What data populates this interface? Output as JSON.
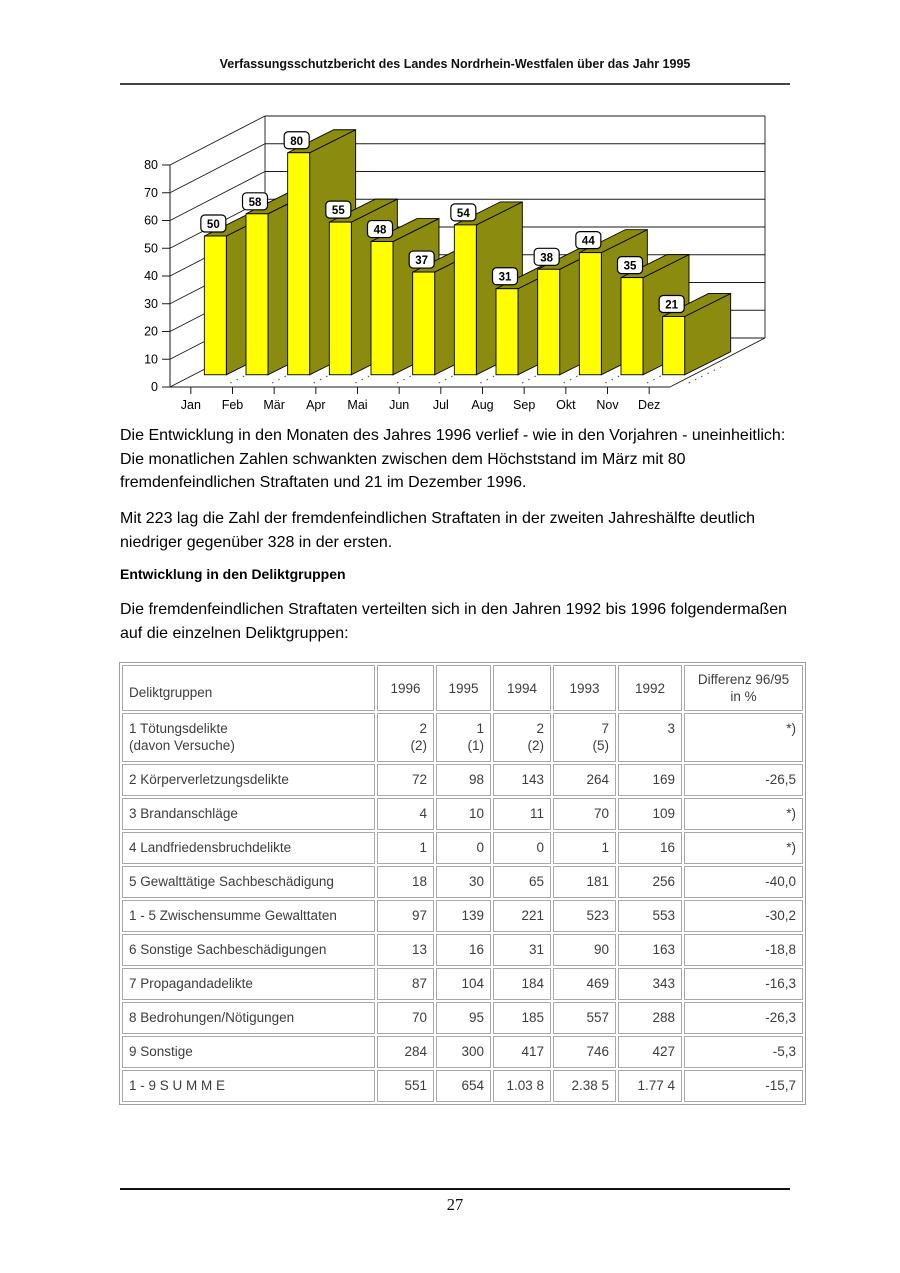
{
  "header": {
    "title": "Verfassungsschutzbericht des Landes Nordrhein-Westfalen über das Jahr 1995"
  },
  "paragraphs": {
    "p1": "Die Entwicklung in den Monaten des Jahres 1996 verlief - wie in den Vorjahren - uneinheitlich: Die monatlichen Zahlen schwankten zwischen dem Höchststand im März mit 80 fremdenfeindlichen Straftaten und 21 im Dezember 1996.",
    "p2": "Mit 223 lag die Zahl der fremdenfeindlichen Straftaten in der zweiten Jahreshälfte deutlich niedriger gegenüber 328 in der ersten.",
    "p3": "Die fremdenfeindlichen Straftaten verteilten sich in den Jahren 1992 bis 1996 folgendermaßen auf die einzelnen Deliktgruppen:"
  },
  "section_heading": "Entwicklung in den Deliktgruppen",
  "chart_data": {
    "type": "bar",
    "projection": "3d",
    "categories": [
      "Jan",
      "Feb",
      "Mär",
      "Apr",
      "Mai",
      "Jun",
      "Jul",
      "Aug",
      "Sep",
      "Okt",
      "Nov",
      "Dez"
    ],
    "values": [
      50,
      58,
      80,
      55,
      48,
      37,
      54,
      31,
      38,
      44,
      35,
      21
    ],
    "title": "",
    "xlabel": "",
    "ylabel": "",
    "ylim": [
      0,
      80
    ],
    "ytick_step": 10,
    "grid": true,
    "data_labels": true,
    "bar_color": "#ffff00",
    "side_color": "#8b8b10",
    "line_color": "#1a1a1a"
  },
  "table": {
    "columns": [
      "Deliktgruppen",
      "1996",
      "1995",
      "1994",
      "1993",
      "1992",
      "Differenz 96/95\nin %"
    ],
    "rows": [
      [
        "1 Tötungsdelikte\n(davon Versuche)",
        "2\n(2)",
        "1\n(1)",
        "2\n(2)",
        "7\n(5)",
        "3",
        "*)"
      ],
      [
        "2 Körperverletzungsdelikte",
        "72",
        "98",
        "143",
        "264",
        "169",
        "-26,5"
      ],
      [
        "3 Brandanschläge",
        "4",
        "10",
        "11",
        "70",
        "109",
        "*)"
      ],
      [
        "4 Landfriedensbruchdelikte",
        "1",
        "0",
        "0",
        "1",
        "16",
        "*)"
      ],
      [
        "5 Gewalttätige Sachbeschädigung",
        "18",
        "30",
        "65",
        "181",
        "256",
        "-40,0"
      ],
      [
        "1 - 5 Zwischensumme Gewalttaten",
        "97",
        "139",
        "221",
        "523",
        "553",
        "-30,2"
      ],
      [
        "6 Sonstige Sachbeschädigungen",
        "13",
        "16",
        "31",
        "90",
        "163",
        "-18,8"
      ],
      [
        "7 Propagandadelikte",
        "87",
        "104",
        "184",
        "469",
        "343",
        "-16,3"
      ],
      [
        "8 Bedrohungen/Nötigungen",
        "70",
        "95",
        "185",
        "557",
        "288",
        "-26,3"
      ],
      [
        "9 Sonstige",
        "284",
        "300",
        "417",
        "746",
        "427",
        "-5,3"
      ],
      [
        "1 - 9 S U M M E",
        "551",
        "654",
        "1.03 8",
        "2.38 5",
        "1.77 4",
        "-15,7"
      ]
    ]
  },
  "footer": {
    "page_number": "27"
  }
}
